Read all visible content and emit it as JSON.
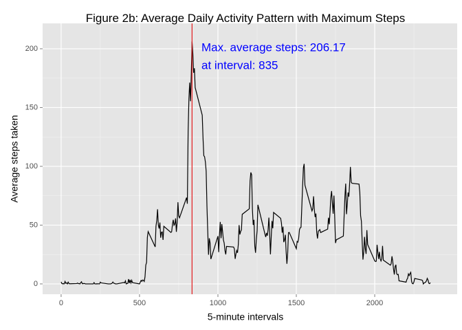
{
  "chart_data": {
    "type": "line",
    "title": "Figure 2b: Average Daily Activity Pattern with Maximum Steps",
    "xlabel": "5-minute intervals",
    "ylabel": "Average steps taken",
    "annotations": [
      "Max. average steps: 206.17",
      "at interval: 835"
    ],
    "vline": 835,
    "vline_color": "#e41a1c",
    "x": [
      0,
      5,
      10,
      15,
      20,
      25,
      30,
      35,
      40,
      45,
      50,
      55,
      100,
      105,
      110,
      115,
      120,
      125,
      130,
      135,
      140,
      145,
      150,
      155,
      200,
      205,
      210,
      215,
      220,
      225,
      230,
      235,
      240,
      245,
      250,
      255,
      300,
      305,
      310,
      315,
      320,
      325,
      330,
      335,
      340,
      345,
      350,
      355,
      400,
      405,
      410,
      415,
      420,
      425,
      430,
      435,
      440,
      445,
      450,
      455,
      500,
      505,
      510,
      515,
      520,
      525,
      530,
      535,
      540,
      545,
      550,
      555,
      600,
      605,
      610,
      615,
      620,
      625,
      630,
      635,
      640,
      645,
      650,
      655,
      700,
      705,
      710,
      715,
      720,
      725,
      730,
      735,
      740,
      745,
      750,
      755,
      800,
      805,
      810,
      815,
      820,
      825,
      830,
      835,
      840,
      845,
      850,
      855,
      900,
      905,
      910,
      915,
      920,
      925,
      930,
      935,
      940,
      945,
      950,
      955,
      1000,
      1005,
      1010,
      1015,
      1020,
      1025,
      1030,
      1035,
      1040,
      1045,
      1050,
      1055,
      1100,
      1105,
      1110,
      1115,
      1120,
      1125,
      1130,
      1135,
      1140,
      1145,
      1150,
      1155,
      1200,
      1205,
      1210,
      1215,
      1220,
      1225,
      1230,
      1235,
      1240,
      1245,
      1250,
      1255,
      1300,
      1305,
      1310,
      1315,
      1320,
      1325,
      1330,
      1335,
      1340,
      1345,
      1350,
      1355,
      1400,
      1405,
      1410,
      1415,
      1420,
      1425,
      1430,
      1435,
      1440,
      1445,
      1450,
      1455,
      1500,
      1505,
      1510,
      1515,
      1520,
      1525,
      1530,
      1535,
      1540,
      1545,
      1550,
      1555,
      1600,
      1605,
      1610,
      1615,
      1620,
      1625,
      1630,
      1635,
      1640,
      1645,
      1650,
      1655,
      1700,
      1705,
      1710,
      1715,
      1720,
      1725,
      1730,
      1735,
      1740,
      1745,
      1750,
      1755,
      1800,
      1805,
      1810,
      1815,
      1820,
      1825,
      1830,
      1835,
      1840,
      1845,
      1850,
      1855,
      1900,
      1905,
      1910,
      1915,
      1920,
      1925,
      1930,
      1935,
      1940,
      1945,
      1950,
      1955,
      2000,
      2005,
      2010,
      2015,
      2020,
      2025,
      2030,
      2035,
      2040,
      2045,
      2050,
      2055,
      2100,
      2105,
      2110,
      2115,
      2120,
      2125,
      2130,
      2135,
      2140,
      2145,
      2150,
      2155,
      2200,
      2205,
      2210,
      2215,
      2220,
      2225,
      2230,
      2235,
      2240,
      2245,
      2250,
      2255,
      2300,
      2305,
      2310,
      2315,
      2320,
      2325,
      2330,
      2335,
      2340,
      2345,
      2350,
      2355
    ],
    "series": [
      {
        "name": "steps",
        "color": "#000000",
        "values": [
          1.7,
          0.3,
          0.1,
          0.2,
          0.1,
          2.1,
          0.5,
          0.9,
          0,
          1.5,
          0.3,
          0.1,
          0.3,
          0.7,
          0.2,
          0.3,
          0,
          1.1,
          1.8,
          0.2,
          0.2,
          0.4,
          0.3,
          0,
          0,
          0,
          1.1,
          0,
          0,
          0.1,
          0,
          0.2,
          0,
          0,
          1.5,
          0.9,
          0,
          0,
          0,
          0,
          0.2,
          0.6,
          1.6,
          0.6,
          0.5,
          0.1,
          0,
          0,
          1.2,
          0.9,
          2.6,
          0,
          0.3,
          0.4,
          4.1,
          0.7,
          3.5,
          0.8,
          3.1,
          1.1,
          0,
          1.6,
          3.0,
          2.2,
          3.3,
          3.0,
          2.1,
          6.1,
          16.0,
          18.3,
          39.5,
          44.5,
          31.5,
          49.3,
          53.8,
          63.5,
          50.0,
          47.1,
          52.2,
          39.3,
          44.0,
          44.2,
          37.4,
          49.0,
          43.8,
          44.4,
          50.5,
          54.5,
          49.9,
          51.0,
          55.7,
          44.3,
          52.3,
          69.5,
          57.8,
          56.2,
          73.4,
          68.2,
          129.4,
          157.5,
          171.2,
          155.4,
          177.3,
          206.17,
          195.9,
          179.6,
          183.4,
          167.0,
          143.5,
          124.0,
          109.1,
          108.1,
          103.7,
          95.9,
          66.2,
          45.2,
          24.8,
          38.8,
          35.0,
          21.1,
          40.6,
          27.0,
          42.4,
          52.7,
          38.9,
          50.8,
          44.3,
          37.4,
          34.7,
          28.3,
          25.1,
          31.9,
          31.4,
          29.7,
          21.3,
          25.5,
          28.4,
          26.5,
          33.4,
          50.0,
          42.0,
          44.6,
          46.0,
          59.2,
          63.9,
          87.7,
          94.8,
          92.8,
          63.4,
          50.2,
          54.5,
          32.4,
          26.5,
          37.7,
          45.1,
          67.3,
          42.3,
          39.9,
          43.3,
          41.0,
          46.2,
          56.4,
          42.8,
          25.1,
          40.0,
          53.5,
          47.3,
          60.8,
          55.8,
          52.0,
          43.6,
          48.7,
          35.5,
          37.5,
          41.8,
          27.5,
          17.1,
          26.1,
          43.6,
          43.8,
          30.0,
          36.1,
          35.5,
          38.8,
          46.0,
          47.8,
          48.1,
          65.3,
          82.9,
          98.7,
          102.1,
          84.0,
          62.1,
          64.1,
          74.5,
          63.2,
          56.9,
          59.8,
          43.9,
          38.6,
          44.7,
          45.5,
          46.2,
          43.7,
          46.6,
          56.3,
          50.7,
          61.2,
          73.4,
          79.0,
          68.9,
          59.7,
          75.1,
          56.5,
          34.8,
          37.5,
          40.7,
          58.0,
          74.7,
          85.3,
          59.3,
          67.8,
          77.7,
          74.2,
          85.3,
          99.5,
          86.6,
          85.6,
          84.9,
          77.8,
          58.0,
          53.4,
          36.3,
          20.7,
          27.4,
          40.0,
          30.2,
          25.5,
          45.7,
          33.5,
          19.6,
          19.0,
          19.3,
          33.3,
          26.8,
          21.2,
          27.3,
          21.3,
          19.5,
          21.3,
          32.3,
          20.2,
          15.9,
          17.2,
          23.5,
          19.2,
          12.5,
          8.0,
          14.7,
          16.3,
          8.7,
          7.8,
          8.1,
          2.6,
          1.5,
          3.7,
          4.8,
          8.5,
          7.1,
          8.7,
          9.8,
          2.2,
          0.3,
          0.1,
          1.6,
          4.6,
          3.3,
          2.8,
          0,
          0.8,
          1.0,
          1.6,
          2.6,
          4.7,
          3.3,
          0.6,
          0.2,
          1.1
        ]
      }
    ],
    "annotation_color": "#0000ff",
    "xlim": [
      -118,
      2526
    ],
    "ylim": [
      -8.8,
      221.6
    ],
    "xticks": [
      0,
      500,
      1000,
      1500,
      2000
    ],
    "yticks": [
      0,
      50,
      100,
      150,
      200
    ],
    "xminor": [
      250,
      750,
      1250,
      1750,
      2250
    ],
    "yminor": [
      25,
      75,
      125,
      175
    ],
    "grid": true
  }
}
